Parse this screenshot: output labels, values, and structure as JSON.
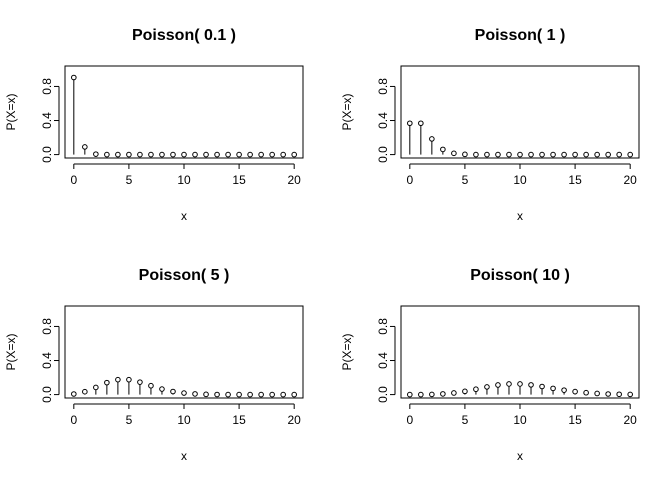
{
  "chart_data": [
    {
      "type": "scatter",
      "title": "Poisson( 0.1 )",
      "xlabel": "x",
      "ylabel": "P(X=x)",
      "xlim": [
        0,
        20
      ],
      "ylim": [
        0,
        1
      ],
      "xticks": [
        "0",
        "5",
        "10",
        "15",
        "20"
      ],
      "yticks": [
        "0.0",
        "0.4",
        "0.8"
      ],
      "x": [
        0,
        1,
        2,
        3,
        4,
        5,
        6,
        7,
        8,
        9,
        10,
        11,
        12,
        13,
        14,
        15,
        16,
        17,
        18,
        19,
        20
      ],
      "values": [
        0.905,
        0.09,
        0.005,
        0,
        0,
        0,
        0,
        0,
        0,
        0,
        0,
        0,
        0,
        0,
        0,
        0,
        0,
        0,
        0,
        0,
        0
      ]
    },
    {
      "type": "scatter",
      "title": "Poisson( 1 )",
      "xlabel": "x",
      "ylabel": "P(X=x)",
      "xlim": [
        0,
        20
      ],
      "ylim": [
        0,
        1
      ],
      "xticks": [
        "0",
        "5",
        "10",
        "15",
        "20"
      ],
      "yticks": [
        "0.0",
        "0.4",
        "0.8"
      ],
      "x": [
        0,
        1,
        2,
        3,
        4,
        5,
        6,
        7,
        8,
        9,
        10,
        11,
        12,
        13,
        14,
        15,
        16,
        17,
        18,
        19,
        20
      ],
      "values": [
        0.368,
        0.368,
        0.184,
        0.061,
        0.015,
        0.003,
        0,
        0,
        0,
        0,
        0,
        0,
        0,
        0,
        0,
        0,
        0,
        0,
        0,
        0,
        0
      ]
    },
    {
      "type": "scatter",
      "title": "Poisson( 5 )",
      "xlabel": "x",
      "ylabel": "P(X=x)",
      "xlim": [
        0,
        20
      ],
      "ylim": [
        0,
        1
      ],
      "xticks": [
        "0",
        "5",
        "10",
        "15",
        "20"
      ],
      "yticks": [
        "0.0",
        "0.4",
        "0.8"
      ],
      "x": [
        0,
        1,
        2,
        3,
        4,
        5,
        6,
        7,
        8,
        9,
        10,
        11,
        12,
        13,
        14,
        15,
        16,
        17,
        18,
        19,
        20
      ],
      "values": [
        0.007,
        0.034,
        0.084,
        0.14,
        0.175,
        0.175,
        0.146,
        0.104,
        0.065,
        0.036,
        0.018,
        0.008,
        0.003,
        0.001,
        0,
        0,
        0,
        0,
        0,
        0,
        0
      ]
    },
    {
      "type": "scatter",
      "title": "Poisson( 10 )",
      "xlabel": "x",
      "ylabel": "P(X=x)",
      "xlim": [
        0,
        20
      ],
      "ylim": [
        0,
        1
      ],
      "xticks": [
        "0",
        "5",
        "10",
        "15",
        "20"
      ],
      "yticks": [
        "0.0",
        "0.4",
        "0.8"
      ],
      "x": [
        0,
        1,
        2,
        3,
        4,
        5,
        6,
        7,
        8,
        9,
        10,
        11,
        12,
        13,
        14,
        15,
        16,
        17,
        18,
        19,
        20
      ],
      "values": [
        0,
        0,
        0.002,
        0.008,
        0.019,
        0.038,
        0.063,
        0.09,
        0.113,
        0.125,
        0.125,
        0.114,
        0.095,
        0.073,
        0.052,
        0.035,
        0.022,
        0.013,
        0.007,
        0.004,
        0.002
      ]
    }
  ]
}
